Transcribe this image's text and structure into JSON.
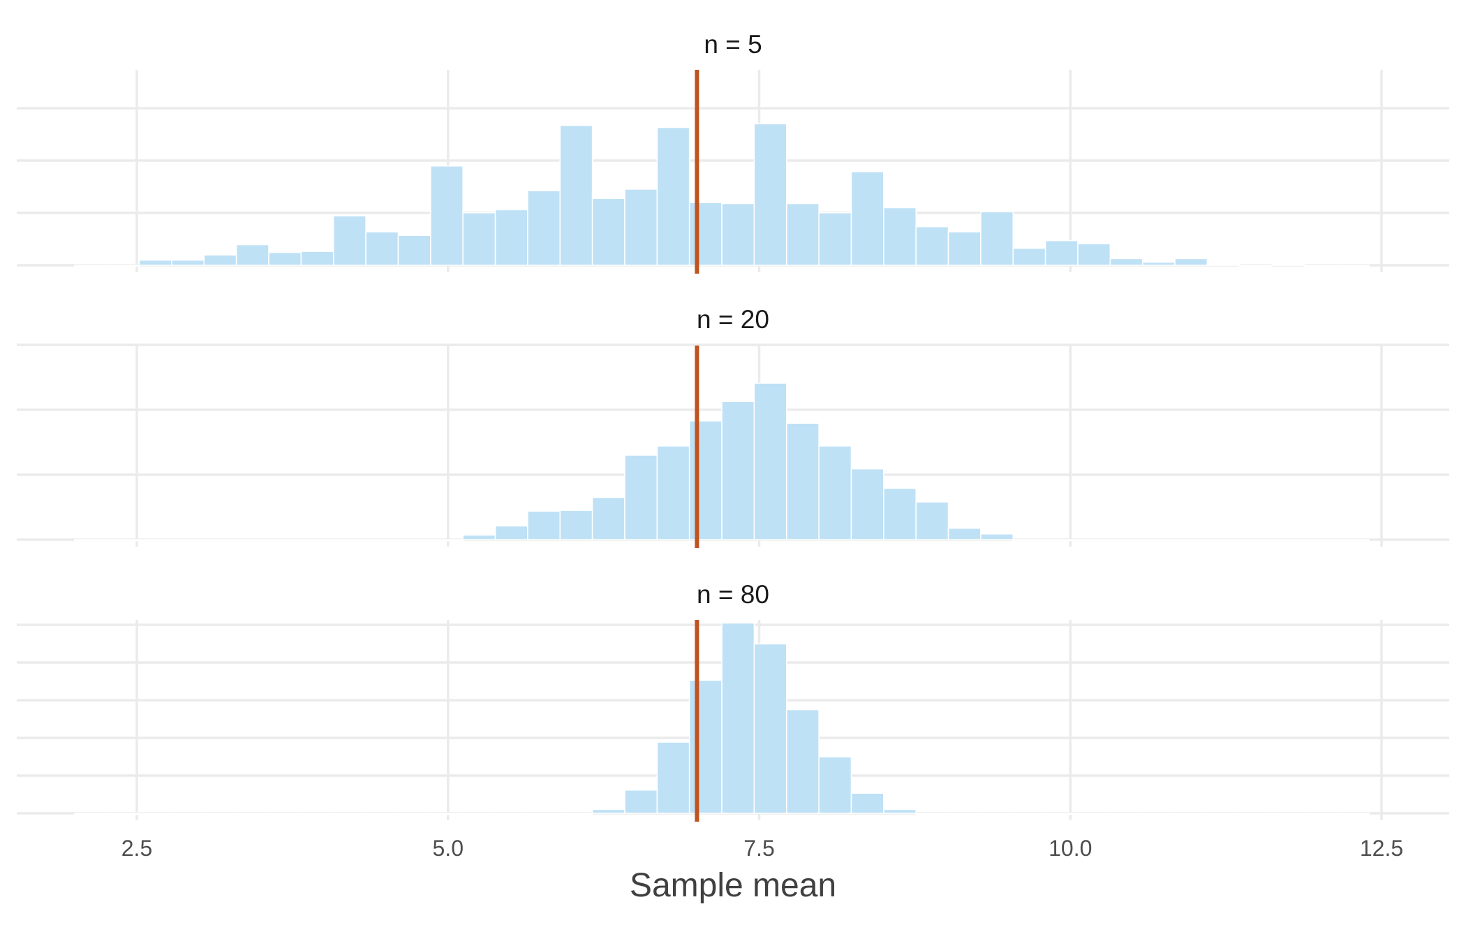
{
  "chart_data": {
    "type": "bar",
    "xlabel": "Sample mean",
    "x_ticks": [
      2.5,
      5.0,
      7.5,
      10.0,
      12.5
    ],
    "x_tick_labels": [
      "2.5",
      "5.0",
      "7.5",
      "10.0",
      "12.5"
    ],
    "xlim": [
      1.6,
      13.2
    ],
    "bin_start": 2.0,
    "bin_width": 0.26,
    "reference_line": {
      "x": 7.0,
      "color": "#c0531f"
    },
    "bar_color": "#bfe1f6",
    "grid": true,
    "panels": [
      {
        "title": "n = 5",
        "ylim": [
          0,
          38
        ],
        "counts": [
          0,
          0,
          1,
          1,
          2,
          4,
          2.5,
          2.7,
          9.6,
          6.5,
          5.8,
          19.3,
          10.2,
          10.8,
          14.5,
          27.2,
          13,
          14.8,
          26.8,
          12.2,
          12,
          27.5,
          12,
          10.2,
          18.2,
          11.2,
          7.5,
          6.5,
          10.4,
          3.3,
          4.8,
          4.2,
          1.3,
          0.6,
          1.3,
          0.2,
          0,
          0.2,
          0,
          0
        ]
      },
      {
        "title": "n = 20",
        "ylim": [
          0,
          85
        ],
        "counts": [
          0,
          0,
          0,
          0,
          0,
          0,
          0,
          0,
          0,
          0,
          0,
          0,
          2,
          6,
          12.5,
          12.8,
          18.5,
          37,
          41,
          52,
          60.5,
          68.5,
          51,
          41,
          31,
          22.5,
          16.5,
          5,
          2.5,
          0,
          0,
          0,
          0,
          0,
          0,
          0,
          0,
          0,
          0,
          0
        ]
      },
      {
        "title": "n = 80",
        "ylim": [
          0,
          250
        ],
        "counts": [
          0,
          0,
          0,
          0,
          0,
          0,
          0,
          0,
          0,
          0,
          0,
          0,
          0,
          0,
          0,
          0,
          5,
          30,
          92,
          172,
          246,
          219,
          134,
          73,
          26,
          5,
          0,
          0,
          0,
          0,
          0,
          0,
          0,
          0,
          0,
          0,
          0,
          0,
          0,
          0
        ]
      }
    ]
  }
}
